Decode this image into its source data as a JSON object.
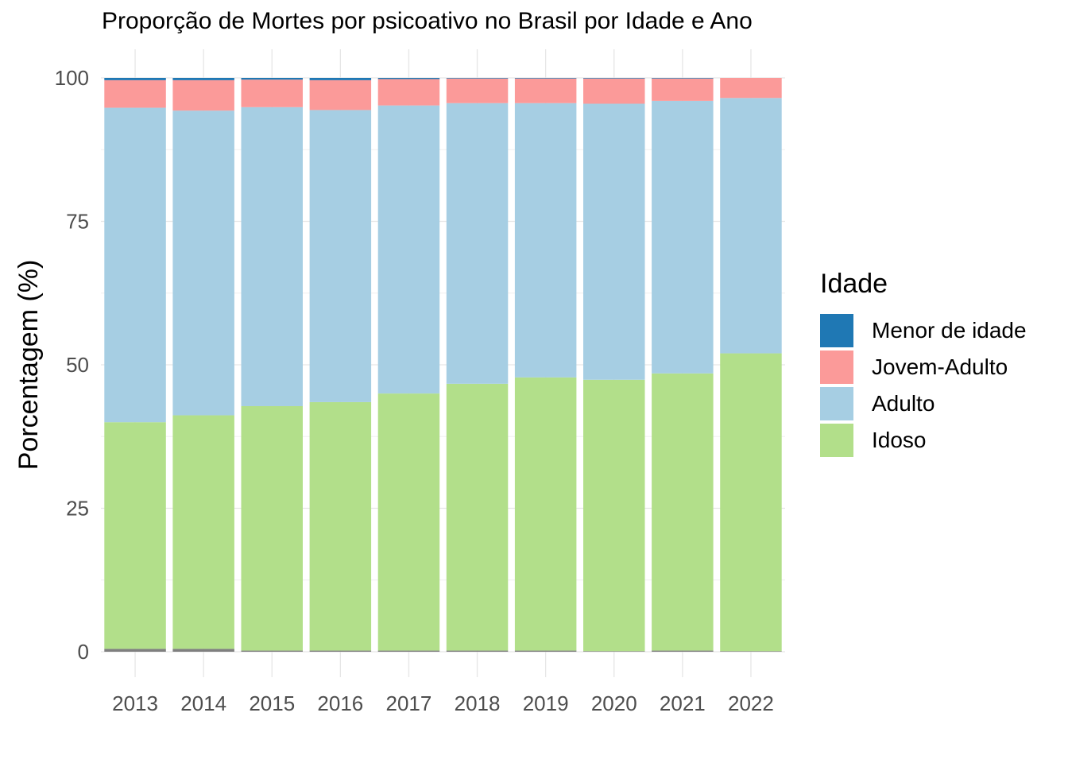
{
  "chart_data": {
    "type": "bar",
    "stacked": true,
    "title": "Proporção de Mortes por psicoativo no Brasil por Idade e Ano",
    "xlabel": "",
    "ylabel": "Porcentagem (%)",
    "ylim": [
      0,
      100
    ],
    "yticks": [
      "0",
      "25",
      "50",
      "75",
      "100"
    ],
    "ytick_values": [
      0,
      25,
      50,
      75,
      100
    ],
    "grid": true,
    "legend_title": "Idade",
    "legend_position": "right",
    "categories": [
      "2013",
      "2014",
      "2015",
      "2016",
      "2017",
      "2018",
      "2019",
      "2020",
      "2021",
      "2022"
    ],
    "series": [
      {
        "name": "NA",
        "color": "#7f7f7f",
        "values": [
          0.5,
          0.5,
          0.2,
          0.2,
          0.2,
          0.2,
          0.2,
          0.1,
          0.2,
          0.1
        ],
        "in_legend": false
      },
      {
        "name": "Idoso",
        "color": "#b2df8a",
        "values": [
          39.5,
          40.7,
          42.6,
          43.3,
          44.8,
          46.5,
          47.6,
          47.3,
          48.3,
          51.9
        ],
        "in_legend": true
      },
      {
        "name": "Adulto",
        "color": "#a6cee3",
        "values": [
          54.8,
          53.1,
          52.1,
          50.9,
          50.2,
          48.9,
          47.8,
          48.1,
          47.5,
          44.5
        ],
        "in_legend": true
      },
      {
        "name": "Jovem-Adulto",
        "color": "#fb9a99",
        "values": [
          4.8,
          5.3,
          4.8,
          5.2,
          4.6,
          4.3,
          4.3,
          4.4,
          3.9,
          3.5
        ],
        "in_legend": true
      },
      {
        "name": "Menor de idade",
        "color": "#1f78b4",
        "values": [
          0.4,
          0.4,
          0.3,
          0.4,
          0.2,
          0.1,
          0.1,
          0.1,
          0.1,
          0.0
        ],
        "in_legend": true
      }
    ]
  },
  "legend": {
    "title": "Idade",
    "items": [
      {
        "label": "Menor de idade",
        "color": "#1f78b4"
      },
      {
        "label": "Jovem-Adulto",
        "color": "#fb9a99"
      },
      {
        "label": "Adulto",
        "color": "#a6cee3"
      },
      {
        "label": "Idoso",
        "color": "#b2df8a"
      }
    ]
  }
}
